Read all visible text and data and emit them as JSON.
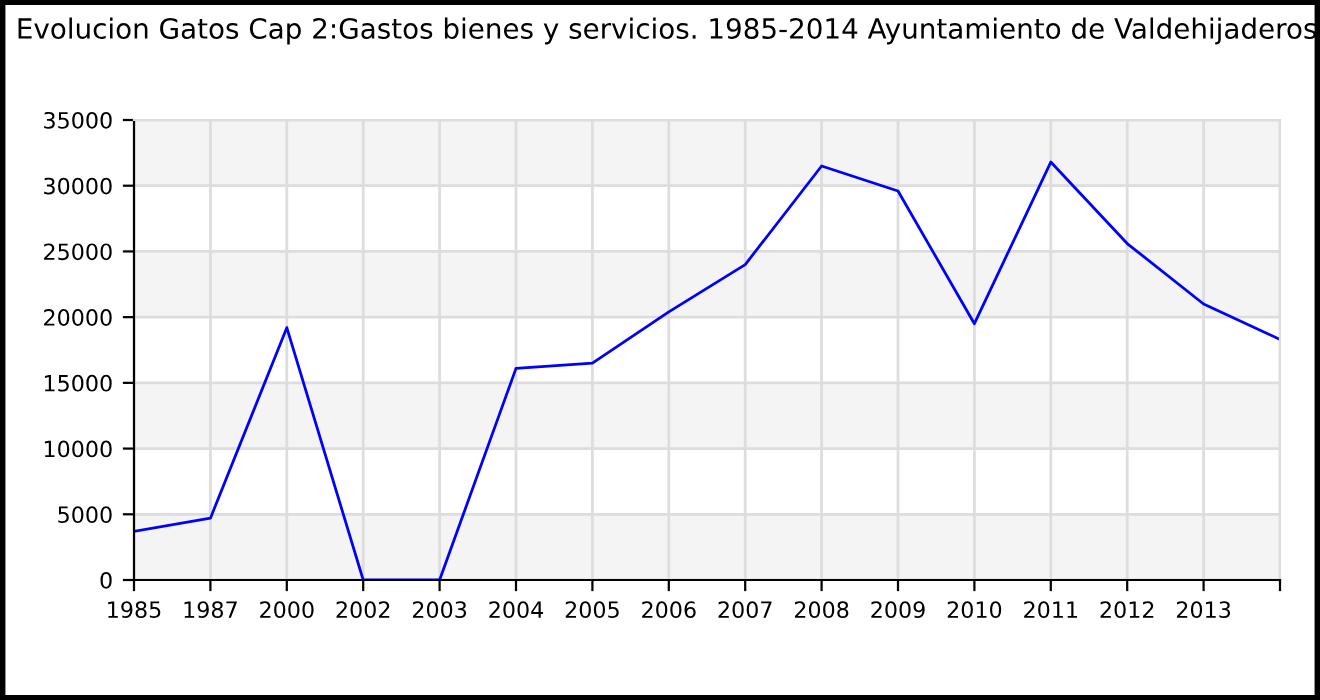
{
  "chart_data": {
    "type": "line",
    "title": "Evolucion Gatos Cap 2:Gastos bienes y servicios. 1985-2014 Ayuntamiento de Valdehijaderos",
    "categories": [
      "1985",
      "1987",
      "2000",
      "2002",
      "2003",
      "2004",
      "2005",
      "2006",
      "2007",
      "2008",
      "2009",
      "2010",
      "2011",
      "2012",
      "2013",
      null
    ],
    "series": [
      {
        "color": "#0000ff",
        "values": [
          3700,
          4700,
          19200,
          0,
          0,
          16100,
          16500,
          20400,
          24000,
          31500,
          29600,
          19500,
          31800,
          25600,
          21000,
          18300
        ]
      }
    ],
    "ylim": [
      0,
      35000
    ],
    "yticks": [
      0,
      5000,
      10000,
      15000,
      20000,
      25000,
      30000,
      35000
    ],
    "grid": true,
    "legend": false,
    "marker": "none",
    "line_style": "solid"
  }
}
